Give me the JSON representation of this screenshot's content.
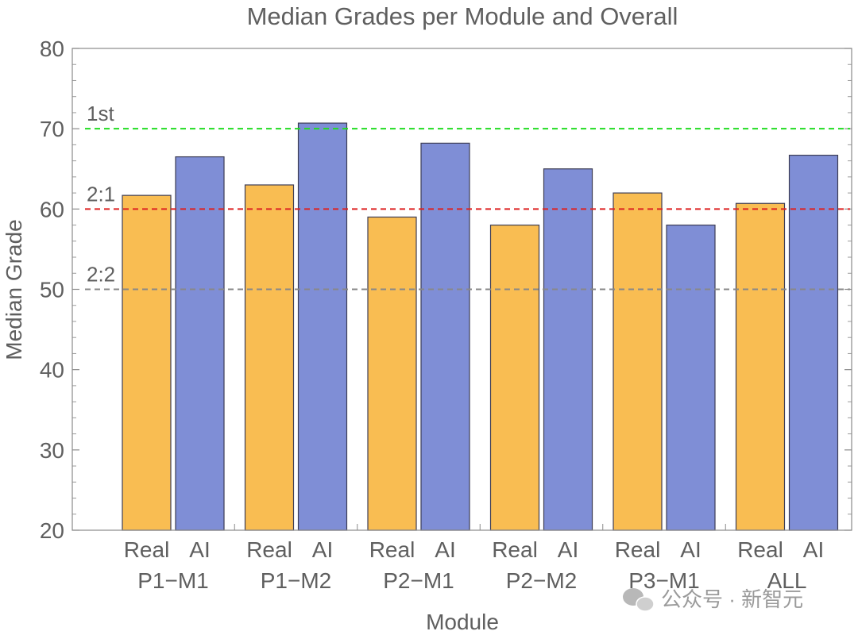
{
  "chart_data": {
    "type": "bar",
    "title": "Median Grades per Module and Overall",
    "xlabel": "Module",
    "ylabel": "Median Grade",
    "ylim": [
      20,
      80
    ],
    "yticks": [
      "20",
      "30",
      "40",
      "50",
      "60",
      "70",
      "80"
    ],
    "categories": [
      "P1−M1",
      "P1−M2",
      "P2−M1",
      "P2−M2",
      "P3−M1",
      "ALL"
    ],
    "series": [
      {
        "name": "Real",
        "color": "#f9bd52",
        "values": [
          61.7,
          63.0,
          59.0,
          58.0,
          62.0,
          60.7
        ]
      },
      {
        "name": "AI",
        "color": "#7f8ed6",
        "values": [
          66.5,
          70.7,
          68.2,
          65.0,
          58.0,
          66.7
        ]
      }
    ],
    "reference_lines": [
      {
        "label": "1st",
        "value": 70,
        "color": "#22dd22"
      },
      {
        "label": "2:1",
        "value": 60,
        "color": "#dd2222"
      },
      {
        "label": "2:2",
        "value": 50,
        "color": "#888888"
      }
    ]
  },
  "watermark": {
    "text": "公众号 · 新智元"
  }
}
